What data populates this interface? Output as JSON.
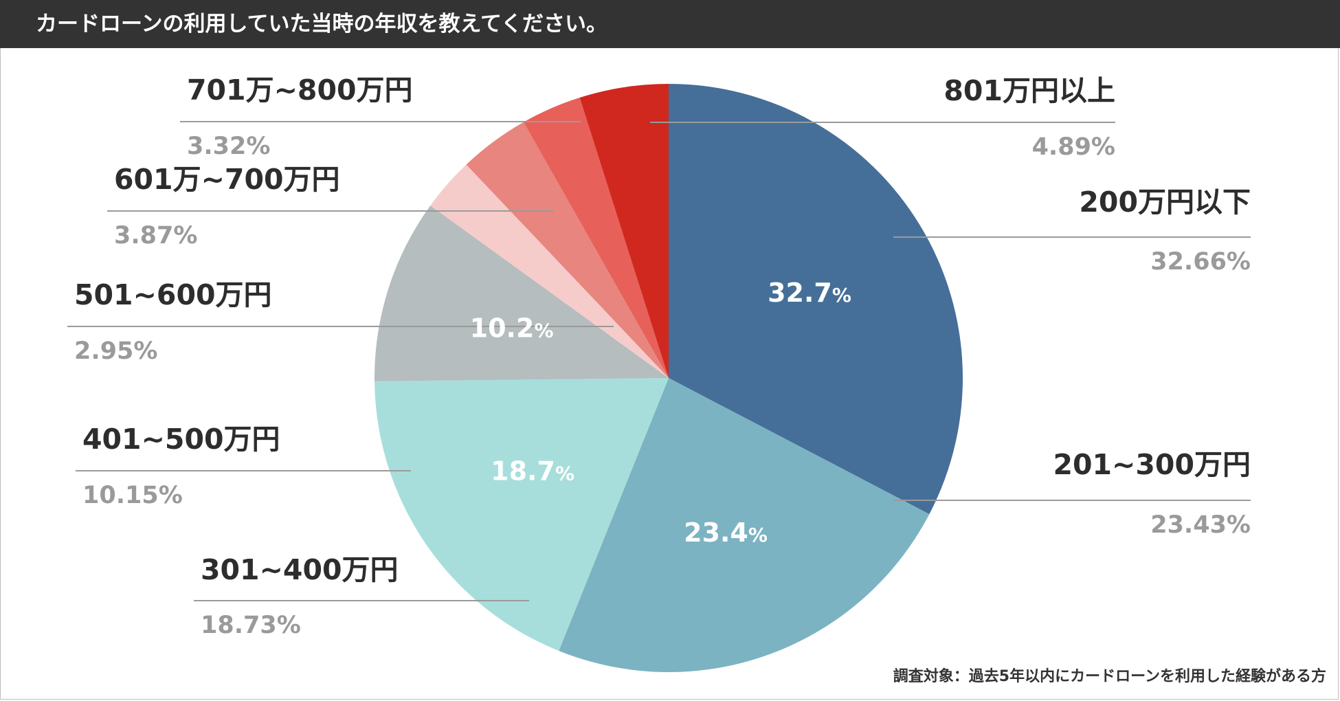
{
  "header": {
    "title": "カードローンの利用していた当時の年収を教えてください。"
  },
  "footnote": "調査対象：過去5年以内にカードローンを利用した経験がある方",
  "chart_data": {
    "type": "pie",
    "title": "カードローンの利用していた当時の年収を教えてください。",
    "slices": [
      {
        "label": "200万円以下",
        "value": 32.66,
        "percent_label": "32.66%",
        "inner_label": "32.7%",
        "color": "#456f98"
      },
      {
        "label": "201~300万円",
        "value": 23.43,
        "percent_label": "23.43%",
        "inner_label": "23.4%",
        "color": "#7cb3c2"
      },
      {
        "label": "301~400万円",
        "value": 18.73,
        "percent_label": "18.73%",
        "inner_label": "18.7%",
        "color": "#a7dedb"
      },
      {
        "label": "401~500万円",
        "value": 10.15,
        "percent_label": "10.15%",
        "inner_label": "10.2%",
        "color": "#b5bdbe"
      },
      {
        "label": "501~600万円",
        "value": 2.95,
        "percent_label": "2.95%",
        "inner_label": "",
        "color": "#f6cccb"
      },
      {
        "label": "601万~700万円",
        "value": 3.87,
        "percent_label": "3.87%",
        "inner_label": "",
        "color": "#e8857f"
      },
      {
        "label": "701万~800万円",
        "value": 3.32,
        "percent_label": "3.32%",
        "inner_label": "",
        "color": "#e8605a"
      },
      {
        "label": "801万円以上",
        "value": 4.89,
        "percent_label": "4.89%",
        "inner_label": "",
        "color": "#d0281f"
      }
    ]
  }
}
